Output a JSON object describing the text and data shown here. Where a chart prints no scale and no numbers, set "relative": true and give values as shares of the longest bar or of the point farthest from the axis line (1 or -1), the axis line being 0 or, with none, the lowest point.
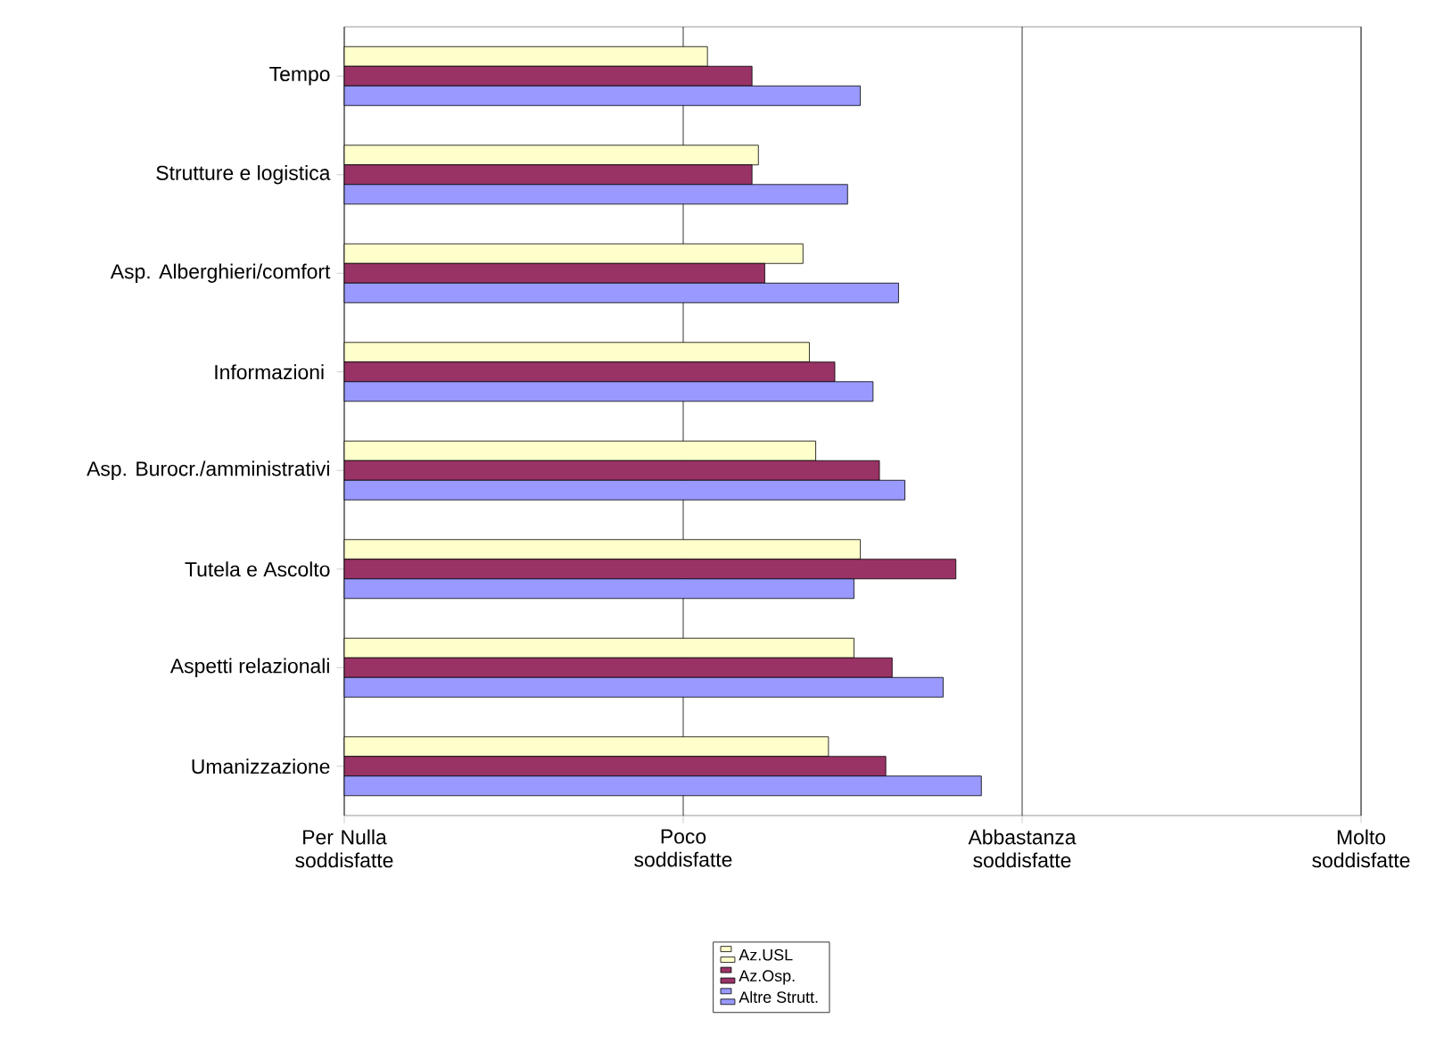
{
  "chart_data": {
    "type": "bar",
    "orientation": "horizontal",
    "relative": true,
    "categories": [
      "Tempo",
      "Strutture e logistica",
      "Asp. Alberghieri/comfort",
      "Informazioni ",
      "Asp. Burocr./amministrativi",
      "Tutela e Ascolto",
      "Aspetti relazionali",
      "Umanizzazione"
    ],
    "series": [
      {
        "name": "Az.USL",
        "color": "#ffffcc",
        "values": [
          0.57,
          0.65,
          0.72,
          0.73,
          0.74,
          0.81,
          0.8,
          0.76
        ]
      },
      {
        "name": "Az.Osp.",
        "color": "#993366",
        "values": [
          0.64,
          0.64,
          0.66,
          0.77,
          0.84,
          0.96,
          0.86,
          0.85
        ]
      },
      {
        "name": "Altre Strutt.",
        "color": "#9999ff",
        "values": [
          0.81,
          0.79,
          0.87,
          0.83,
          0.88,
          0.8,
          0.94,
          1.0
        ]
      }
    ],
    "ref_lines": [
      {
        "axis": "x",
        "value": 0,
        "label": "Per Nulla soddisfatte"
      },
      {
        "axis": "x",
        "value": 0.532,
        "label": "Poco soddisfatte"
      },
      {
        "axis": "x",
        "value": 1.064,
        "label": "Abbastanza soddisfatte"
      },
      {
        "axis": "x",
        "value": 1.596,
        "label": "Molto soddisfatte"
      }
    ],
    "legend": "bottom"
  }
}
